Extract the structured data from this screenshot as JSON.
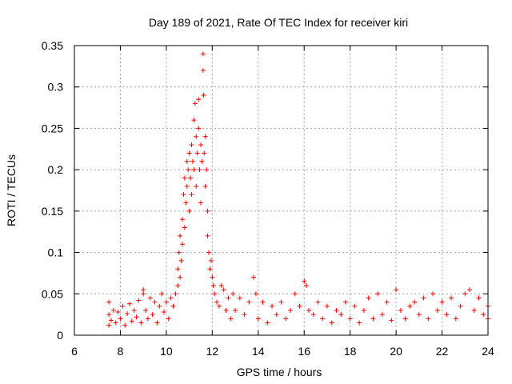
{
  "chart_data": {
    "type": "scatter",
    "title": "Day 189 of 2021, Rate Of TEC Index for receiver kiri",
    "xlabel": "GPS time / hours",
    "ylabel": "ROTI / TECUs",
    "xlim": [
      6,
      24
    ],
    "ylim": [
      0,
      0.35
    ],
    "xticks": [
      6,
      8,
      10,
      12,
      14,
      16,
      18,
      20,
      22,
      24
    ],
    "yticks": [
      0,
      0.05,
      0.1,
      0.15,
      0.2,
      0.25,
      0.3,
      0.35
    ],
    "xtick_labels": [
      "6",
      "8",
      "10",
      "12",
      "14",
      "16",
      "18",
      "20",
      "22",
      "24"
    ],
    "ytick_labels": [
      "0",
      "0.05",
      "0.1",
      "0.15",
      "0.2",
      "0.25",
      "0.3",
      "0.35"
    ],
    "grid": true,
    "marker": "+",
    "color": "#ff0000",
    "series": [
      {
        "name": "ROTI",
        "points": [
          [
            7.5,
            0.012
          ],
          [
            7.5,
            0.025
          ],
          [
            7.5,
            0.04
          ],
          [
            7.6,
            0.018
          ],
          [
            7.7,
            0.03
          ],
          [
            7.8,
            0.015
          ],
          [
            7.9,
            0.028
          ],
          [
            8.0,
            0.02
          ],
          [
            8.1,
            0.035
          ],
          [
            8.2,
            0.012
          ],
          [
            8.3,
            0.026
          ],
          [
            8.4,
            0.038
          ],
          [
            8.5,
            0.017
          ],
          [
            8.6,
            0.03
          ],
          [
            8.7,
            0.022
          ],
          [
            8.8,
            0.042
          ],
          [
            8.9,
            0.015
          ],
          [
            9.0,
            0.055
          ],
          [
            9.0,
            0.05
          ],
          [
            9.1,
            0.03
          ],
          [
            9.2,
            0.02
          ],
          [
            9.3,
            0.045
          ],
          [
            9.4,
            0.025
          ],
          [
            9.5,
            0.04
          ],
          [
            9.6,
            0.015
          ],
          [
            9.7,
            0.035
          ],
          [
            9.8,
            0.05
          ],
          [
            9.9,
            0.028
          ],
          [
            10.0,
            0.04
          ],
          [
            10.1,
            0.02
          ],
          [
            10.2,
            0.045
          ],
          [
            10.3,
            0.035
          ],
          [
            10.4,
            0.05
          ],
          [
            10.5,
            0.06
          ],
          [
            10.5,
            0.08
          ],
          [
            10.55,
            0.1
          ],
          [
            10.6,
            0.07
          ],
          [
            10.6,
            0.12
          ],
          [
            10.65,
            0.09
          ],
          [
            10.7,
            0.11
          ],
          [
            10.7,
            0.14
          ],
          [
            10.75,
            0.17
          ],
          [
            10.8,
            0.13
          ],
          [
            10.8,
            0.19
          ],
          [
            10.85,
            0.16
          ],
          [
            10.9,
            0.21
          ],
          [
            10.9,
            0.18
          ],
          [
            10.95,
            0.2
          ],
          [
            11.0,
            0.15
          ],
          [
            11.0,
            0.22
          ],
          [
            11.05,
            0.19
          ],
          [
            11.1,
            0.23
          ],
          [
            11.1,
            0.17
          ],
          [
            11.15,
            0.21
          ],
          [
            11.2,
            0.26
          ],
          [
            11.2,
            0.2
          ],
          [
            11.25,
            0.28
          ],
          [
            11.3,
            0.24
          ],
          [
            11.3,
            0.18
          ],
          [
            11.35,
            0.22
          ],
          [
            11.4,
            0.25
          ],
          [
            11.4,
            0.285
          ],
          [
            11.45,
            0.2
          ],
          [
            11.5,
            0.23
          ],
          [
            11.5,
            0.16
          ],
          [
            11.55,
            0.21
          ],
          [
            11.6,
            0.34
          ],
          [
            11.6,
            0.32
          ],
          [
            11.62,
            0.29
          ],
          [
            11.65,
            0.22
          ],
          [
            11.7,
            0.24
          ],
          [
            11.7,
            0.18
          ],
          [
            11.75,
            0.2
          ],
          [
            11.8,
            0.15
          ],
          [
            11.8,
            0.12
          ],
          [
            11.85,
            0.1
          ],
          [
            11.9,
            0.08
          ],
          [
            11.95,
            0.09
          ],
          [
            12.0,
            0.07
          ],
          [
            12.05,
            0.06
          ],
          [
            12.1,
            0.05
          ],
          [
            12.2,
            0.04
          ],
          [
            12.3,
            0.035
          ],
          [
            12.4,
            0.06
          ],
          [
            12.5,
            0.055
          ],
          [
            12.6,
            0.03
          ],
          [
            12.7,
            0.045
          ],
          [
            12.8,
            0.02
          ],
          [
            12.9,
            0.05
          ],
          [
            13.0,
            0.03
          ],
          [
            13.2,
            0.045
          ],
          [
            13.4,
            0.025
          ],
          [
            13.6,
            0.04
          ],
          [
            13.8,
            0.07
          ],
          [
            13.9,
            0.05
          ],
          [
            14.0,
            0.02
          ],
          [
            14.2,
            0.04
          ],
          [
            14.4,
            0.015
          ],
          [
            14.6,
            0.035
          ],
          [
            14.8,
            0.025
          ],
          [
            15.0,
            0.04
          ],
          [
            15.2,
            0.02
          ],
          [
            15.4,
            0.03
          ],
          [
            15.6,
            0.05
          ],
          [
            15.8,
            0.035
          ],
          [
            16.0,
            0.065
          ],
          [
            16.1,
            0.06
          ],
          [
            16.2,
            0.03
          ],
          [
            16.4,
            0.025
          ],
          [
            16.6,
            0.04
          ],
          [
            16.8,
            0.02
          ],
          [
            17.0,
            0.035
          ],
          [
            17.2,
            0.015
          ],
          [
            17.4,
            0.03
          ],
          [
            17.6,
            0.025
          ],
          [
            17.8,
            0.04
          ],
          [
            18.0,
            0.02
          ],
          [
            18.2,
            0.035
          ],
          [
            18.4,
            0.015
          ],
          [
            18.6,
            0.03
          ],
          [
            18.8,
            0.045
          ],
          [
            19.0,
            0.02
          ],
          [
            19.2,
            0.05
          ],
          [
            19.4,
            0.025
          ],
          [
            19.6,
            0.04
          ],
          [
            19.8,
            0.018
          ],
          [
            20.0,
            0.055
          ],
          [
            20.2,
            0.03
          ],
          [
            20.4,
            0.02
          ],
          [
            20.6,
            0.035
          ],
          [
            20.8,
            0.04
          ],
          [
            21.0,
            0.025
          ],
          [
            21.2,
            0.045
          ],
          [
            21.4,
            0.02
          ],
          [
            21.6,
            0.05
          ],
          [
            21.8,
            0.03
          ],
          [
            22.0,
            0.04
          ],
          [
            22.2,
            0.025
          ],
          [
            22.4,
            0.045
          ],
          [
            22.6,
            0.02
          ],
          [
            22.8,
            0.035
          ],
          [
            23.0,
            0.05
          ],
          [
            23.2,
            0.055
          ],
          [
            23.4,
            0.03
          ],
          [
            23.6,
            0.045
          ],
          [
            23.8,
            0.025
          ],
          [
            24.0,
            0.035
          ],
          [
            24.0,
            0.02
          ]
        ]
      }
    ]
  }
}
